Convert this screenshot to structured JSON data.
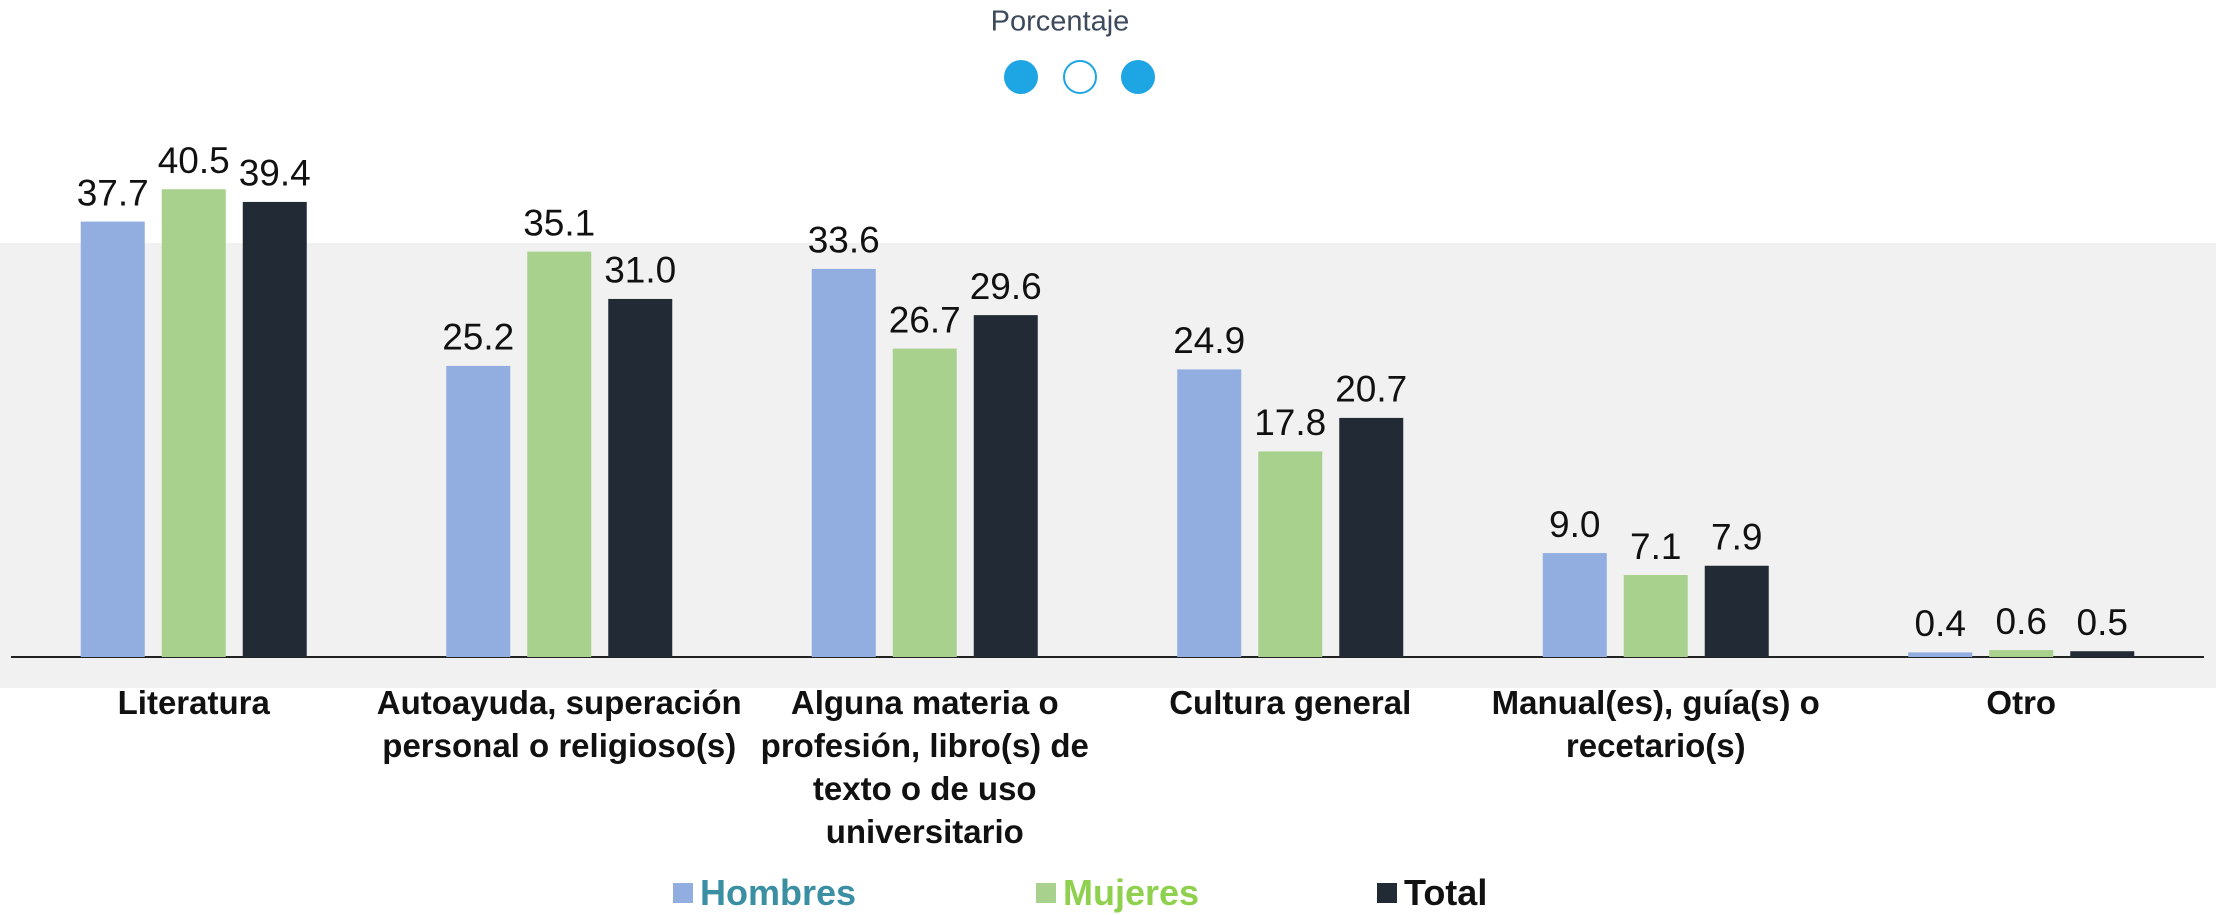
{
  "chart_data": {
    "type": "bar",
    "title": "Porcentaje",
    "categories": [
      "Literatura",
      "Autoayuda, superación personal o religioso(s)",
      "Alguna materia o profesión, libro(s) de texto o de uso universitario",
      "Cultura general",
      "Manual(es), guía(s) o recetario(s)",
      "Otro"
    ],
    "series": [
      {
        "name": "Hombres",
        "color": "#92aee0",
        "legend_text_color": "#3a8fa3",
        "values": [
          37.7,
          25.2,
          33.6,
          24.9,
          9.0,
          0.4
        ],
        "value_labels": [
          "37.7",
          "25.2",
          "33.6",
          "24.9",
          "9.0",
          "0.4"
        ]
      },
      {
        "name": "Mujeres",
        "color": "#a9d18e",
        "legend_text_color": "#8fd14f",
        "values": [
          40.5,
          35.1,
          26.7,
          17.8,
          7.1,
          0.6
        ],
        "value_labels": [
          "40.5",
          "35.1",
          "26.7",
          "17.8",
          "7.1",
          "0.6"
        ]
      },
      {
        "name": "Total",
        "color": "#222a35",
        "legend_text_color": "#111111",
        "values": [
          39.4,
          31.0,
          29.6,
          20.7,
          7.9,
          0.5
        ],
        "value_labels": [
          "39.4",
          "31.0",
          "29.6",
          "20.7",
          "7.9",
          "0.5"
        ]
      }
    ]
  }
}
